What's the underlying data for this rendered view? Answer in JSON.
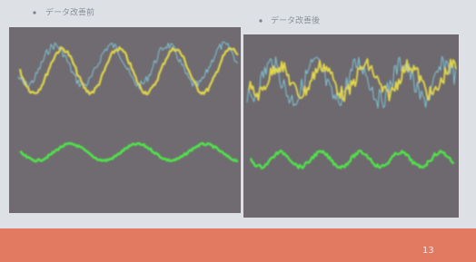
{
  "slide": {
    "panels": [
      {
        "caption": "データ改善前"
      },
      {
        "caption": "データ改善後"
      }
    ],
    "page_number": "13"
  }
}
